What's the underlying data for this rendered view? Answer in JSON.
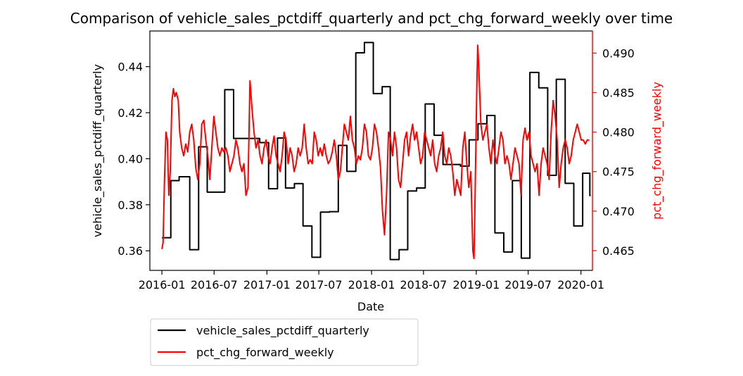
{
  "chart_data": {
    "type": "line",
    "title": "Comparison of vehicle_sales_pctdiff_quarterly and pct_chg_forward_weekly over time",
    "xlabel": "Date",
    "ylabel_left": "vehicle_sales_pctdiff_quarterly",
    "ylabel_right": "pct_chg_forward_weekly",
    "xlim": [
      "2015-11-20",
      "2020-02-10"
    ],
    "ylim_left": [
      0.3515,
      0.4555
    ],
    "ylim_right": [
      0.4625,
      0.4928
    ],
    "x_ticks": [
      "2016-01",
      "2016-07",
      "2017-01",
      "2017-07",
      "2018-01",
      "2018-07",
      "2019-01",
      "2019-07",
      "2020-01"
    ],
    "y_ticks_left": [
      "0.36",
      "0.38",
      "0.40",
      "0.42",
      "0.44"
    ],
    "y_ticks_right": [
      "0.465",
      "0.470",
      "0.475",
      "0.480",
      "0.485",
      "0.490"
    ],
    "grid": false,
    "legend": {
      "placement": "below-left",
      "entries": [
        "vehicle_sales_pctdiff_quarterly",
        "pct_chg_forward_weekly"
      ]
    },
    "colors": {
      "left_series": "#000000",
      "right_series": "#ff0000",
      "right_axis": "#ff0000"
    },
    "series": [
      {
        "name": "vehicle_sales_pctdiff_quarterly",
        "axis": "left",
        "step": true,
        "points": [
          [
            "2016-01-01",
            0.3657
          ],
          [
            "2016-02-01",
            0.3905
          ],
          [
            "2016-03-01",
            0.3922
          ],
          [
            "2016-04-07",
            0.3605
          ],
          [
            "2016-05-08",
            0.4052
          ],
          [
            "2016-06-07",
            0.3855
          ],
          [
            "2016-08-07",
            0.43
          ],
          [
            "2016-09-07",
            0.4088
          ],
          [
            "2016-12-07",
            0.407
          ],
          [
            "2017-01-07",
            0.387
          ],
          [
            "2017-02-07",
            0.409
          ],
          [
            "2017-03-07",
            0.3873
          ],
          [
            "2017-04-07",
            0.3892
          ],
          [
            "2017-05-07",
            0.3708
          ],
          [
            "2017-06-07",
            0.3572
          ],
          [
            "2017-07-07",
            0.3768
          ],
          [
            "2017-08-07",
            0.377
          ],
          [
            "2017-09-07",
            0.4058
          ],
          [
            "2017-10-07",
            0.3945
          ],
          [
            "2017-11-07",
            0.446
          ],
          [
            "2017-12-07",
            0.4505
          ],
          [
            "2018-01-07",
            0.4283
          ],
          [
            "2018-02-07",
            0.4313
          ],
          [
            "2018-03-07",
            0.3562
          ],
          [
            "2018-04-07",
            0.3605
          ],
          [
            "2018-05-07",
            0.386
          ],
          [
            "2018-06-07",
            0.3873
          ],
          [
            "2018-07-07",
            0.4238
          ],
          [
            "2018-08-07",
            0.4102
          ],
          [
            "2018-09-07",
            0.3975
          ],
          [
            "2018-11-07",
            0.3968
          ],
          [
            "2018-12-07",
            0.4082
          ],
          [
            "2019-01-07",
            0.4152
          ],
          [
            "2019-02-07",
            0.4188
          ],
          [
            "2019-03-07",
            0.3678
          ],
          [
            "2019-04-07",
            0.3595
          ],
          [
            "2019-05-07",
            0.3905
          ],
          [
            "2019-06-07",
            0.3568
          ],
          [
            "2019-07-07",
            0.4375
          ],
          [
            "2019-08-07",
            0.4308
          ],
          [
            "2019-09-07",
            0.3928
          ],
          [
            "2019-10-07",
            0.4345
          ],
          [
            "2019-11-07",
            0.3893
          ],
          [
            "2019-12-07",
            0.3708
          ],
          [
            "2020-01-07",
            0.3937
          ],
          [
            "2020-02-01",
            0.384
          ],
          [
            "2020-02-04",
            0.384
          ]
        ]
      },
      {
        "name": "pct_chg_forward_weekly",
        "axis": "right",
        "step": false,
        "points": [
          [
            "2016-01-01",
            0.4652
          ],
          [
            "2016-01-05",
            0.466
          ],
          [
            "2016-01-10",
            0.474
          ],
          [
            "2016-01-15",
            0.48
          ],
          [
            "2016-01-20",
            0.479
          ],
          [
            "2016-01-25",
            0.472
          ],
          [
            "2016-01-30",
            0.475
          ],
          [
            "2016-02-05",
            0.484
          ],
          [
            "2016-02-10",
            0.4855
          ],
          [
            "2016-02-15",
            0.4845
          ],
          [
            "2016-02-20",
            0.485
          ],
          [
            "2016-02-27",
            0.484
          ],
          [
            "2016-03-03",
            0.48
          ],
          [
            "2016-03-10",
            0.478
          ],
          [
            "2016-03-17",
            0.477
          ],
          [
            "2016-03-24",
            0.4785
          ],
          [
            "2016-03-31",
            0.4775
          ],
          [
            "2016-04-07",
            0.48
          ],
          [
            "2016-04-14",
            0.481
          ],
          [
            "2016-04-21",
            0.479
          ],
          [
            "2016-04-28",
            0.4755
          ],
          [
            "2016-05-05",
            0.474
          ],
          [
            "2016-05-12",
            0.476
          ],
          [
            "2016-05-19",
            0.481
          ],
          [
            "2016-05-26",
            0.4815
          ],
          [
            "2016-06-02",
            0.479
          ],
          [
            "2016-06-09",
            0.477
          ],
          [
            "2016-06-16",
            0.474
          ],
          [
            "2016-06-23",
            0.478
          ],
          [
            "2016-06-30",
            0.482
          ],
          [
            "2016-07-07",
            0.48
          ],
          [
            "2016-07-14",
            0.478
          ],
          [
            "2016-07-21",
            0.477
          ],
          [
            "2016-07-28",
            0.478
          ],
          [
            "2016-08-04",
            0.4775
          ],
          [
            "2016-08-11",
            0.478
          ],
          [
            "2016-08-18",
            0.477
          ],
          [
            "2016-08-25",
            0.475
          ],
          [
            "2016-09-01",
            0.476
          ],
          [
            "2016-09-08",
            0.477
          ],
          [
            "2016-09-15",
            0.479
          ],
          [
            "2016-09-22",
            0.478
          ],
          [
            "2016-09-29",
            0.476
          ],
          [
            "2016-10-06",
            0.475
          ],
          [
            "2016-10-13",
            0.476
          ],
          [
            "2016-10-20",
            0.472
          ],
          [
            "2016-10-27",
            0.473
          ],
          [
            "2016-11-03",
            0.4865
          ],
          [
            "2016-11-10",
            0.483
          ],
          [
            "2016-11-17",
            0.48
          ],
          [
            "2016-11-24",
            0.478
          ],
          [
            "2016-12-01",
            0.479
          ],
          [
            "2016-12-08",
            0.477
          ],
          [
            "2016-12-15",
            0.476
          ],
          [
            "2016-12-22",
            0.478
          ],
          [
            "2016-12-29",
            0.479
          ],
          [
            "2017-01-05",
            0.477
          ],
          [
            "2017-01-12",
            0.476
          ],
          [
            "2017-01-19",
            0.478
          ],
          [
            "2017-01-26",
            0.4795
          ],
          [
            "2017-02-02",
            0.477
          ],
          [
            "2017-02-09",
            0.476
          ],
          [
            "2017-02-16",
            0.475
          ],
          [
            "2017-02-23",
            0.477
          ],
          [
            "2017-03-02",
            0.48
          ],
          [
            "2017-03-09",
            0.479
          ],
          [
            "2017-03-16",
            0.476
          ],
          [
            "2017-03-23",
            0.478
          ],
          [
            "2017-03-30",
            0.477
          ],
          [
            "2017-04-06",
            0.475
          ],
          [
            "2017-04-13",
            0.476
          ],
          [
            "2017-04-20",
            0.478
          ],
          [
            "2017-04-27",
            0.477
          ],
          [
            "2017-05-04",
            0.478
          ],
          [
            "2017-05-11",
            0.481
          ],
          [
            "2017-05-18",
            0.478
          ],
          [
            "2017-05-25",
            0.476
          ],
          [
            "2017-06-01",
            0.4765
          ],
          [
            "2017-06-08",
            0.476
          ],
          [
            "2017-06-15",
            0.48
          ],
          [
            "2017-06-22",
            0.479
          ],
          [
            "2017-06-29",
            0.477
          ],
          [
            "2017-07-06",
            0.478
          ],
          [
            "2017-07-13",
            0.477
          ],
          [
            "2017-07-20",
            0.4785
          ],
          [
            "2017-07-27",
            0.477
          ],
          [
            "2017-08-03",
            0.476
          ],
          [
            "2017-08-10",
            0.4765
          ],
          [
            "2017-08-17",
            0.4775
          ],
          [
            "2017-08-24",
            0.479
          ],
          [
            "2017-08-31",
            0.477
          ],
          [
            "2017-09-07",
            0.474
          ],
          [
            "2017-09-14",
            0.475
          ],
          [
            "2017-09-21",
            0.478
          ],
          [
            "2017-09-28",
            0.481
          ],
          [
            "2017-10-05",
            0.48
          ],
          [
            "2017-10-12",
            0.479
          ],
          [
            "2017-10-19",
            0.482
          ],
          [
            "2017-10-26",
            0.479
          ],
          [
            "2017-11-02",
            0.478
          ],
          [
            "2017-11-09",
            0.476
          ],
          [
            "2017-11-16",
            0.477
          ],
          [
            "2017-11-23",
            0.4765
          ],
          [
            "2017-11-30",
            0.478
          ],
          [
            "2017-12-07",
            0.481
          ],
          [
            "2017-12-14",
            0.48
          ],
          [
            "2017-12-21",
            0.477
          ],
          [
            "2017-12-28",
            0.4765
          ],
          [
            "2018-01-04",
            0.478
          ],
          [
            "2018-01-11",
            0.481
          ],
          [
            "2018-01-18",
            0.48
          ],
          [
            "2018-01-25",
            0.478
          ],
          [
            "2018-02-01",
            0.4755
          ],
          [
            "2018-02-08",
            0.47
          ],
          [
            "2018-02-15",
            0.467
          ],
          [
            "2018-02-22",
            0.472
          ],
          [
            "2018-03-01",
            0.48
          ],
          [
            "2018-03-08",
            0.479
          ],
          [
            "2018-03-15",
            0.477
          ],
          [
            "2018-03-22",
            0.48
          ],
          [
            "2018-03-29",
            0.478
          ],
          [
            "2018-04-05",
            0.474
          ],
          [
            "2018-04-12",
            0.473
          ],
          [
            "2018-04-19",
            0.476
          ],
          [
            "2018-04-26",
            0.479
          ],
          [
            "2018-05-03",
            0.48
          ],
          [
            "2018-05-10",
            0.477
          ],
          [
            "2018-05-17",
            0.4795
          ],
          [
            "2018-05-24",
            0.481
          ],
          [
            "2018-05-31",
            0.479
          ],
          [
            "2018-06-07",
            0.48
          ],
          [
            "2018-06-14",
            0.478
          ],
          [
            "2018-06-21",
            0.476
          ],
          [
            "2018-06-28",
            0.477
          ],
          [
            "2018-07-05",
            0.48
          ],
          [
            "2018-07-12",
            0.479
          ],
          [
            "2018-07-19",
            0.478
          ],
          [
            "2018-07-26",
            0.477
          ],
          [
            "2018-08-02",
            0.479
          ],
          [
            "2018-08-09",
            0.476
          ],
          [
            "2018-08-16",
            0.475
          ],
          [
            "2018-08-23",
            0.477
          ],
          [
            "2018-08-30",
            0.478
          ],
          [
            "2018-09-06",
            0.48
          ],
          [
            "2018-09-13",
            0.477
          ],
          [
            "2018-09-20",
            0.476
          ],
          [
            "2018-09-27",
            0.478
          ],
          [
            "2018-10-04",
            0.477
          ],
          [
            "2018-10-11",
            0.475
          ],
          [
            "2018-10-18",
            0.472
          ],
          [
            "2018-10-25",
            0.474
          ],
          [
            "2018-11-01",
            0.473
          ],
          [
            "2018-11-08",
            0.472
          ],
          [
            "2018-11-15",
            0.478
          ],
          [
            "2018-11-22",
            0.48
          ],
          [
            "2018-11-29",
            0.476
          ],
          [
            "2018-12-06",
            0.473
          ],
          [
            "2018-12-13",
            0.475
          ],
          [
            "2018-12-20",
            0.465
          ],
          [
            "2018-12-24",
            0.464
          ],
          [
            "2018-12-27",
            0.47
          ],
          [
            "2019-01-03",
            0.486
          ],
          [
            "2019-01-06",
            0.491
          ],
          [
            "2019-01-10",
            0.488
          ],
          [
            "2019-01-17",
            0.481
          ],
          [
            "2019-01-24",
            0.479
          ],
          [
            "2019-01-31",
            0.48
          ],
          [
            "2019-02-07",
            0.481
          ],
          [
            "2019-02-14",
            0.478
          ],
          [
            "2019-02-21",
            0.476
          ],
          [
            "2019-02-28",
            0.479
          ],
          [
            "2019-03-07",
            0.477
          ],
          [
            "2019-03-14",
            0.476
          ],
          [
            "2019-03-21",
            0.478
          ],
          [
            "2019-03-28",
            0.48
          ],
          [
            "2019-04-04",
            0.479
          ],
          [
            "2019-04-11",
            0.476
          ],
          [
            "2019-04-18",
            0.477
          ],
          [
            "2019-04-25",
            0.476
          ],
          [
            "2019-05-02",
            0.474
          ],
          [
            "2019-05-09",
            0.476
          ],
          [
            "2019-05-16",
            0.478
          ],
          [
            "2019-05-23",
            0.477
          ],
          [
            "2019-05-30",
            0.476
          ],
          [
            "2019-06-06",
            0.472
          ],
          [
            "2019-06-13",
            0.479
          ],
          [
            "2019-06-20",
            0.4805
          ],
          [
            "2019-06-27",
            0.479
          ],
          [
            "2019-07-04",
            0.48
          ],
          [
            "2019-07-11",
            0.477
          ],
          [
            "2019-07-18",
            0.476
          ],
          [
            "2019-07-25",
            0.475
          ],
          [
            "2019-08-01",
            0.476
          ],
          [
            "2019-08-08",
            0.472
          ],
          [
            "2019-08-15",
            0.476
          ],
          [
            "2019-08-22",
            0.478
          ],
          [
            "2019-08-29",
            0.477
          ],
          [
            "2019-09-05",
            0.476
          ],
          [
            "2019-09-12",
            0.474
          ],
          [
            "2019-09-19",
            0.48
          ],
          [
            "2019-09-26",
            0.484
          ],
          [
            "2019-10-03",
            0.482
          ],
          [
            "2019-10-10",
            0.479
          ],
          [
            "2019-10-17",
            0.473
          ],
          [
            "2019-10-24",
            0.476
          ],
          [
            "2019-10-31",
            0.478
          ],
          [
            "2019-11-07",
            0.479
          ],
          [
            "2019-11-14",
            0.478
          ],
          [
            "2019-11-21",
            0.476
          ],
          [
            "2019-11-28",
            0.477
          ],
          [
            "2019-12-05",
            0.479
          ],
          [
            "2019-12-12",
            0.48
          ],
          [
            "2019-12-19",
            0.481
          ],
          [
            "2019-12-26",
            0.48
          ],
          [
            "2020-01-02",
            0.479
          ],
          [
            "2020-01-09",
            0.479
          ],
          [
            "2020-01-16",
            0.4785
          ],
          [
            "2020-01-23",
            0.479
          ],
          [
            "2020-01-30",
            0.479
          ]
        ]
      }
    ]
  }
}
